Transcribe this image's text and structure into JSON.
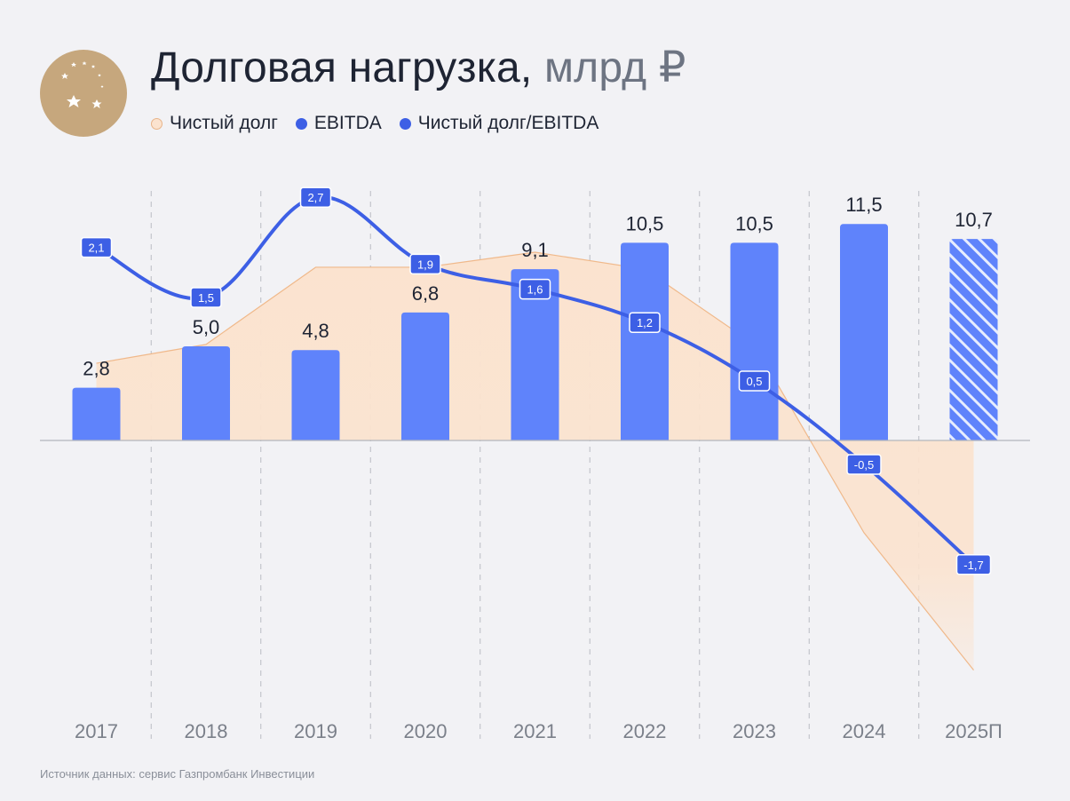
{
  "title": {
    "main": "Долговая нагрузка,",
    "unit": "млрд ₽"
  },
  "legend": {
    "net_debt": "Чистый долг",
    "ebitda": "EBITDA",
    "ratio": "Чистый долг/EBITDA"
  },
  "source": "Источник данных: сервис Газпромбанк Инвестиции",
  "colors": {
    "ebitda_bar": "#5f83fb",
    "ratio_line": "#3d5fe5",
    "net_debt_fill": "#fbe3cf",
    "net_debt_line": "#f0b98b",
    "background": "#f2f2f5"
  },
  "chart_data": {
    "type": "bar",
    "categories": [
      "2017",
      "2018",
      "2019",
      "2020",
      "2021",
      "2022",
      "2023",
      "2024",
      "2025П"
    ],
    "series": [
      {
        "name": "EBITDA",
        "type": "bar",
        "values": [
          2.8,
          5.0,
          4.8,
          6.8,
          9.1,
          10.5,
          10.5,
          11.5,
          10.7
        ],
        "labels": [
          "2,8",
          "5,0",
          "4,8",
          "6,8",
          "9,1",
          "10,5",
          "10,5",
          "11,5",
          "10,7"
        ],
        "forecast_index": 8
      },
      {
        "name": "Чистый долг",
        "type": "area",
        "values": [
          4.1,
          5.1,
          9.2,
          9.2,
          10.0,
          9.1,
          5.1,
          -4.9,
          -12.2
        ]
      },
      {
        "name": "Чистый долг/EBITDA",
        "type": "line",
        "values": [
          2.1,
          1.5,
          2.7,
          1.9,
          1.6,
          1.2,
          0.5,
          -0.5,
          -1.7
        ],
        "labels": [
          "2,1",
          "1,5",
          "2,7",
          "1,9",
          "1,6",
          "1,2",
          "0,5",
          "-0,5",
          "-1,7"
        ]
      }
    ],
    "grid": "vertical dashed",
    "legend_placement": "top-left"
  }
}
